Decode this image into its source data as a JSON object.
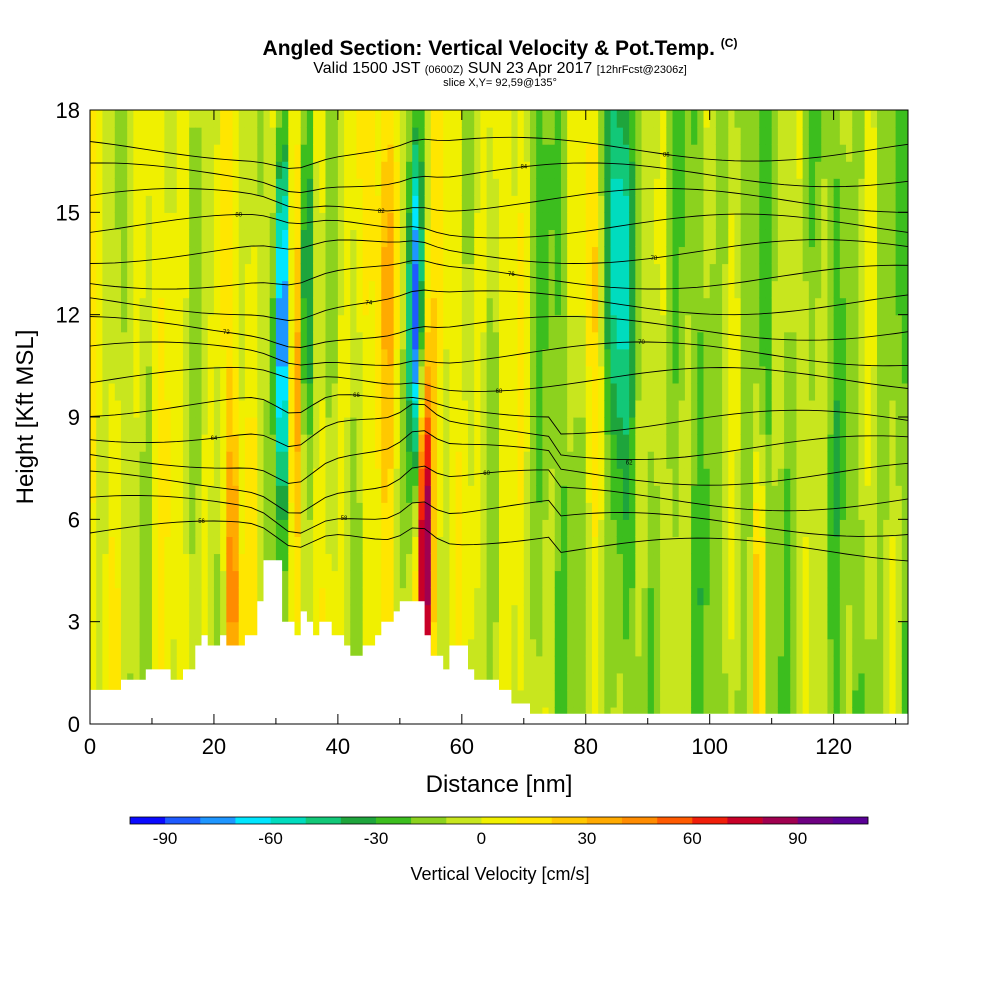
{
  "title": "Angled Section: Vertical Velocity & Pot.Temp.",
  "title_mark": "(C)",
  "subtitle_main": "Valid 1500 JST",
  "subtitle_utc": "(0600Z)",
  "subtitle_date": "SUN 23 Apr 2017",
  "subtitle_fcst": "[12hrFcst@2306z]",
  "slice_label": "slice X,Y= 92,59@135°",
  "chart_data": {
    "type": "heatmap",
    "xlabel": "Distance [nm]",
    "ylabel": "Height [Kft MSL]",
    "xlim": [
      0,
      132
    ],
    "ylim": [
      0,
      18
    ],
    "x_ticks": [
      0,
      20,
      40,
      60,
      80,
      100,
      120
    ],
    "y_ticks": [
      0,
      3,
      6,
      9,
      12,
      15,
      18
    ],
    "colorbar": {
      "label": "Vertical Velocity [cm/s]",
      "min": -100,
      "max": 110,
      "step": 10,
      "tick_values": [
        -90,
        -60,
        -30,
        0,
        30,
        60,
        90
      ],
      "colors": [
        "#0a0aff",
        "#1e5aff",
        "#1e96ff",
        "#00e6ff",
        "#00dcbe",
        "#12c878",
        "#1ea53c",
        "#3cbe1e",
        "#8cd21e",
        "#c8e61e",
        "#f0f000",
        "#ffe600",
        "#ffc800",
        "#ffaa00",
        "#ff8c00",
        "#ff5a00",
        "#f01e0a",
        "#c80028",
        "#a00050",
        "#6e0082",
        "#5a0096"
      ]
    },
    "terrain_kft": [
      [
        0,
        1.0
      ],
      [
        5,
        1.0
      ],
      [
        5,
        1.3
      ],
      [
        9,
        1.3
      ],
      [
        9,
        1.6
      ],
      [
        13,
        1.6
      ],
      [
        13,
        1.3
      ],
      [
        15,
        1.3
      ],
      [
        15,
        1.6
      ],
      [
        17,
        1.6
      ],
      [
        17,
        2.3
      ],
      [
        18,
        2.3
      ],
      [
        18,
        2.6
      ],
      [
        19,
        2.6
      ],
      [
        19,
        2.3
      ],
      [
        21,
        2.3
      ],
      [
        21,
        2.6
      ],
      [
        22,
        2.6
      ],
      [
        22,
        2.3
      ],
      [
        25,
        2.3
      ],
      [
        25,
        2.6
      ],
      [
        27,
        2.6
      ],
      [
        27,
        3.6
      ],
      [
        28,
        3.6
      ],
      [
        28,
        4.8
      ],
      [
        31,
        4.8
      ],
      [
        31,
        3.0
      ],
      [
        33,
        3.0
      ],
      [
        33,
        2.6
      ],
      [
        34,
        2.6
      ],
      [
        34,
        3.3
      ],
      [
        35,
        3.3
      ],
      [
        35,
        3.0
      ],
      [
        36,
        3.0
      ],
      [
        36,
        2.6
      ],
      [
        37,
        2.6
      ],
      [
        37,
        3.0
      ],
      [
        39,
        3.0
      ],
      [
        39,
        2.6
      ],
      [
        41,
        2.6
      ],
      [
        41,
        2.3
      ],
      [
        42,
        2.3
      ],
      [
        42,
        2.0
      ],
      [
        44,
        2.0
      ],
      [
        44,
        2.3
      ],
      [
        46,
        2.3
      ],
      [
        46,
        2.6
      ],
      [
        47,
        2.6
      ],
      [
        47,
        3.0
      ],
      [
        49,
        3.0
      ],
      [
        49,
        3.3
      ],
      [
        50,
        3.3
      ],
      [
        50,
        3.6
      ],
      [
        54,
        3.6
      ],
      [
        54,
        2.6
      ],
      [
        55,
        2.6
      ],
      [
        55,
        2.0
      ],
      [
        57,
        2.0
      ],
      [
        57,
        1.6
      ],
      [
        58,
        1.6
      ],
      [
        58,
        2.3
      ],
      [
        61,
        2.3
      ],
      [
        61,
        1.6
      ],
      [
        62,
        1.6
      ],
      [
        62,
        1.3
      ],
      [
        66,
        1.3
      ],
      [
        66,
        1.0
      ],
      [
        68,
        1.0
      ],
      [
        68,
        0.6
      ],
      [
        71,
        0.6
      ],
      [
        71,
        0.3
      ],
      [
        132,
        0.3
      ]
    ],
    "velocity_features": [
      {
        "x": 31,
        "z": 12,
        "w": -75,
        "sigma_x": 1.3
      },
      {
        "x": 33,
        "z": 11,
        "w": 35,
        "sigma_x": 1.0
      },
      {
        "x": 35,
        "z": 13,
        "w": -55,
        "sigma_x": 1.2
      },
      {
        "x": 52.5,
        "z": 12,
        "w": -80,
        "sigma_x": 1.2
      },
      {
        "x": 54,
        "z": 5,
        "w": 110,
        "sigma_x": 1.2
      },
      {
        "x": 48,
        "z": 14,
        "w": 25,
        "sigma_x": 2.5
      },
      {
        "x": 81,
        "z": 14,
        "w": 30,
        "sigma_x": 2.0
      },
      {
        "x": 85,
        "z": 14,
        "w": -50,
        "sigma_x": 2.0
      },
      {
        "x": 23,
        "z": 4,
        "w": 50,
        "sigma_x": 1.0
      },
      {
        "x": 108,
        "z": 3.5,
        "w": 40,
        "sigma_x": 1.0
      }
    ],
    "theta_contour_labels": [
      "56",
      "58",
      "60",
      "62",
      "64",
      "66",
      "68",
      "70",
      "72",
      "74",
      "76",
      "78",
      "80",
      "82",
      "84",
      "86"
    ]
  }
}
